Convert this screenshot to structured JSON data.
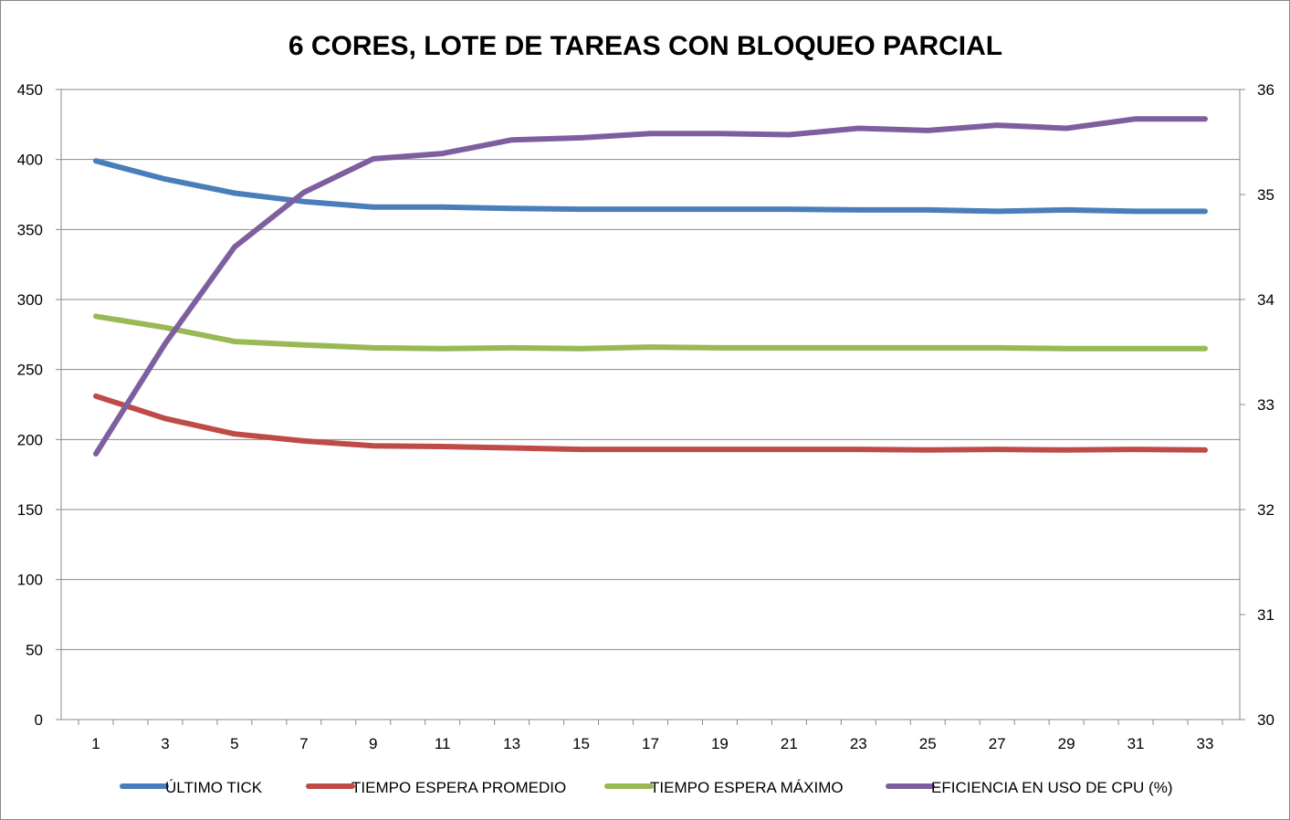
{
  "chart_data": {
    "type": "line",
    "title": "6 CORES, LOTE DE TAREAS CON BLOQUEO PARCIAL",
    "xlabel": "",
    "ylabel": "",
    "x": [
      1,
      2,
      3,
      4,
      5,
      6,
      7,
      8,
      9,
      10,
      11,
      12,
      13,
      14,
      15,
      16,
      17,
      18,
      19,
      20,
      21,
      22,
      23,
      24,
      25,
      26,
      27,
      28,
      29,
      30,
      31,
      32,
      33
    ],
    "x_tick_labels": [
      "1",
      "3",
      "5",
      "7",
      "9",
      "11",
      "13",
      "15",
      "17",
      "19",
      "21",
      "23",
      "25",
      "27",
      "29",
      "31",
      "33"
    ],
    "y_left": {
      "min": 0,
      "max": 450,
      "ticks": [
        "0",
        "50",
        "100",
        "150",
        "200",
        "250",
        "300",
        "350",
        "400",
        "450"
      ]
    },
    "y_right": {
      "min": 30,
      "max": 36,
      "ticks": [
        "30",
        "31",
        "32",
        "33",
        "34",
        "35",
        "36"
      ]
    },
    "grid": true,
    "legend_position": "bottom",
    "series": [
      {
        "name": "ÚLTIMO TICK",
        "color": "#4a7ebb",
        "axis": "left",
        "points": [
          [
            1,
            399
          ],
          [
            3,
            386
          ],
          [
            5,
            376
          ],
          [
            7,
            370
          ],
          [
            9,
            366
          ],
          [
            11,
            366
          ],
          [
            13,
            365
          ],
          [
            15,
            364.5
          ],
          [
            17,
            364.5
          ],
          [
            19,
            364.5
          ],
          [
            21,
            364.5
          ],
          [
            23,
            364
          ],
          [
            25,
            364
          ],
          [
            27,
            363
          ],
          [
            29,
            364
          ],
          [
            31,
            363
          ],
          [
            33,
            363
          ]
        ]
      },
      {
        "name": "TIEMPO ESPERA PROMEDIO",
        "color": "#be4b48",
        "axis": "left",
        "points": [
          [
            1,
            231
          ],
          [
            3,
            215
          ],
          [
            5,
            204
          ],
          [
            7,
            199
          ],
          [
            9,
            195.5
          ],
          [
            11,
            195
          ],
          [
            13,
            194
          ],
          [
            15,
            193
          ],
          [
            17,
            193
          ],
          [
            19,
            193
          ],
          [
            21,
            193
          ],
          [
            23,
            193
          ],
          [
            25,
            192.5
          ],
          [
            27,
            193
          ],
          [
            29,
            192.5
          ],
          [
            31,
            193
          ],
          [
            33,
            192.5
          ]
        ]
      },
      {
        "name": "TIEMPO ESPERA MÁXIMO",
        "color": "#98b954",
        "axis": "left",
        "points": [
          [
            1,
            288
          ],
          [
            3,
            280
          ],
          [
            5,
            270
          ],
          [
            7,
            267.5
          ],
          [
            9,
            265.5
          ],
          [
            11,
            265
          ],
          [
            13,
            265.5
          ],
          [
            15,
            265
          ],
          [
            17,
            266
          ],
          [
            19,
            265.5
          ],
          [
            21,
            265.5
          ],
          [
            23,
            265.5
          ],
          [
            25,
            265.5
          ],
          [
            27,
            265.5
          ],
          [
            29,
            265
          ],
          [
            31,
            265
          ],
          [
            33,
            265
          ]
        ]
      },
      {
        "name": "EFICIENCIA EN USO DE CPU (%)",
        "color": "#7d5fa0",
        "axis": "right",
        "points": [
          [
            1,
            32.53
          ],
          [
            3,
            33.58
          ],
          [
            5,
            34.5
          ],
          [
            7,
            35.02
          ],
          [
            9,
            35.34
          ],
          [
            11,
            35.39
          ],
          [
            13,
            35.52
          ],
          [
            15,
            35.54
          ],
          [
            17,
            35.58
          ],
          [
            19,
            35.58
          ],
          [
            21,
            35.57
          ],
          [
            23,
            35.63
          ],
          [
            25,
            35.61
          ],
          [
            27,
            35.66
          ],
          [
            29,
            35.63
          ],
          [
            31,
            35.72
          ],
          [
            33,
            35.72
          ]
        ]
      }
    ]
  }
}
